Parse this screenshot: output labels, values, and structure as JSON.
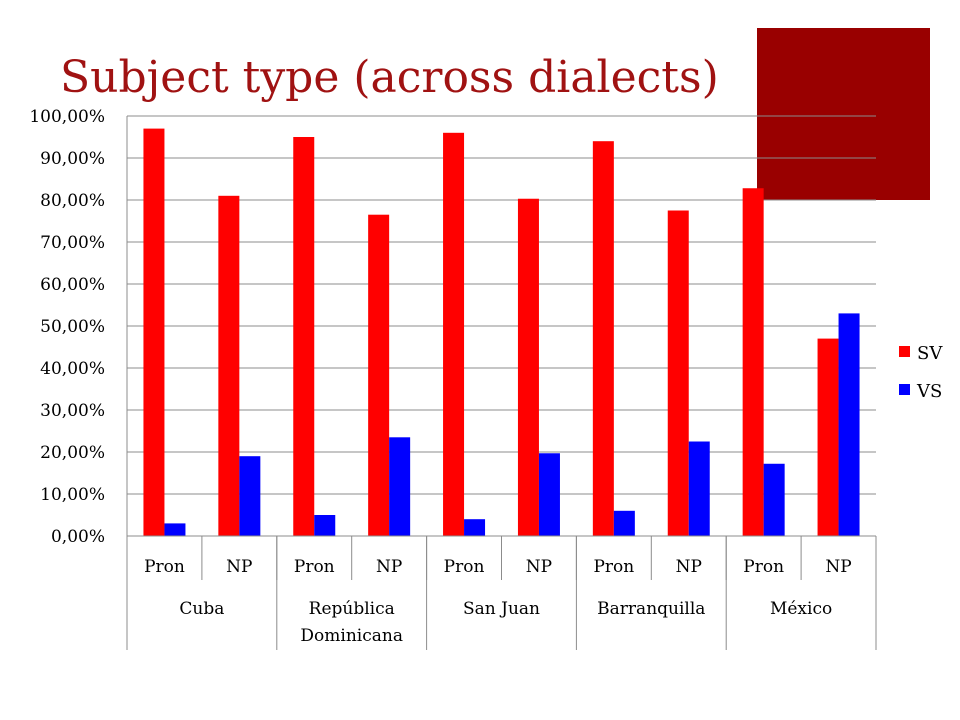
{
  "slide": {
    "title": "Subject type (across dialects)",
    "accent_color": "#990000",
    "title_color": "#a01212"
  },
  "chart_data": {
    "type": "bar",
    "title": "",
    "xlabel": "",
    "ylabel": "",
    "ylim": [
      0,
      100
    ],
    "y_ticks": [
      "0,00%",
      "10,00%",
      "20,00%",
      "30,00%",
      "40,00%",
      "50,00%",
      "60,00%",
      "70,00%",
      "80,00%",
      "90,00%",
      "100,00%"
    ],
    "grid": true,
    "legend_position": "right",
    "groups": [
      {
        "name": "Cuba",
        "lines": [
          "Cuba"
        ],
        "categories": [
          "Pron",
          "NP"
        ]
      },
      {
        "name": "República Dominicana",
        "lines": [
          "República",
          "Dominicana"
        ],
        "categories": [
          "Pron",
          "NP"
        ]
      },
      {
        "name": "San Juan",
        "lines": [
          "San Juan"
        ],
        "categories": [
          "Pron",
          "NP"
        ]
      },
      {
        "name": "Barranquilla",
        "lines": [
          "Barranquilla"
        ],
        "categories": [
          "Pron",
          "NP"
        ]
      },
      {
        "name": "México",
        "lines": [
          "México"
        ],
        "categories": [
          "Pron",
          "NP"
        ]
      }
    ],
    "categories": [
      "Pron",
      "NP",
      "Pron",
      "NP",
      "Pron",
      "NP",
      "Pron",
      "NP",
      "Pron",
      "NP"
    ],
    "series": [
      {
        "name": "SV",
        "color": "#ff0000",
        "values": [
          97,
          81,
          95,
          76.5,
          96,
          80.3,
          94,
          77.5,
          82.8,
          47
        ]
      },
      {
        "name": "VS",
        "color": "#0000ff",
        "values": [
          3,
          19,
          5,
          23.5,
          4,
          19.7,
          6,
          22.5,
          17.2,
          53
        ]
      }
    ]
  }
}
